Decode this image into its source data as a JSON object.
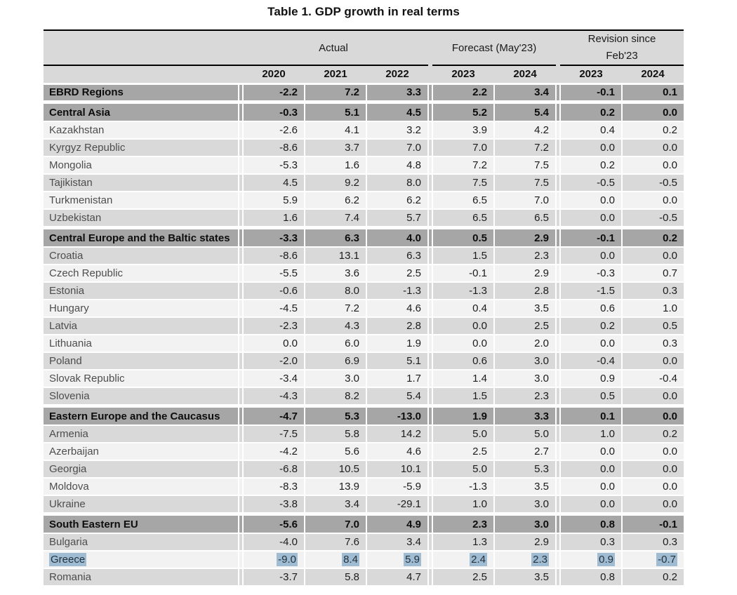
{
  "title": "Table 1. GDP growth in real terms",
  "colors": {
    "header_bg": "#d9d9d9",
    "section_bg": "#a6a6a6",
    "row_light": "#f2f2f2",
    "row_dark": "#d9d9d9",
    "selection": "#a0bcd2"
  },
  "chart_data": {
    "type": "table",
    "title": "Table 1. GDP growth in real terms",
    "column_groups": [
      {
        "label": "Actual",
        "span": 3
      },
      {
        "label": "Forecast (May'23)",
        "span": 2
      },
      {
        "label": "Revision since\nFeb'23",
        "span": 2
      }
    ],
    "columns": [
      "2020",
      "2021",
      "2022",
      "2023",
      "2024",
      "2023",
      "2024"
    ],
    "rows": [
      {
        "name": "EBRD Regions",
        "variant": "section",
        "gap_above": false,
        "selected": false,
        "values": [
          "-2.2",
          "7.2",
          "3.3",
          "2.2",
          "3.4",
          "-0.1",
          "0.1"
        ]
      },
      {
        "name": "Central Asia",
        "variant": "section",
        "gap_above": true,
        "selected": false,
        "values": [
          "-0.3",
          "5.1",
          "4.5",
          "5.2",
          "5.4",
          "0.2",
          "0.0"
        ]
      },
      {
        "name": "Kazakhstan",
        "variant": "light",
        "gap_above": false,
        "selected": false,
        "values": [
          "-2.6",
          "4.1",
          "3.2",
          "3.9",
          "4.2",
          "0.4",
          "0.2"
        ]
      },
      {
        "name": "Kyrgyz Republic",
        "variant": "dark",
        "gap_above": false,
        "selected": false,
        "values": [
          "-8.6",
          "3.7",
          "7.0",
          "7.0",
          "7.2",
          "0.0",
          "0.0"
        ]
      },
      {
        "name": "Mongolia",
        "variant": "light",
        "gap_above": false,
        "selected": false,
        "values": [
          "-5.3",
          "1.6",
          "4.8",
          "7.2",
          "7.5",
          "0.2",
          "0.0"
        ]
      },
      {
        "name": "Tajikistan",
        "variant": "dark",
        "gap_above": false,
        "selected": false,
        "values": [
          "4.5",
          "9.2",
          "8.0",
          "7.5",
          "7.5",
          "-0.5",
          "-0.5"
        ]
      },
      {
        "name": "Turkmenistan",
        "variant": "light",
        "gap_above": false,
        "selected": false,
        "values": [
          "5.9",
          "6.2",
          "6.2",
          "6.5",
          "7.0",
          "0.0",
          "0.0"
        ]
      },
      {
        "name": "Uzbekistan",
        "variant": "dark",
        "gap_above": false,
        "selected": false,
        "values": [
          "1.6",
          "7.4",
          "5.7",
          "6.5",
          "6.5",
          "0.0",
          "-0.5"
        ]
      },
      {
        "name": "Central Europe and the Baltic states",
        "variant": "section",
        "gap_above": true,
        "selected": false,
        "values": [
          "-3.3",
          "6.3",
          "4.0",
          "0.5",
          "2.9",
          "-0.1",
          "0.2"
        ]
      },
      {
        "name": "Croatia",
        "variant": "dark",
        "gap_above": false,
        "selected": false,
        "values": [
          "-8.6",
          "13.1",
          "6.3",
          "1.5",
          "2.3",
          "0.0",
          "0.0"
        ]
      },
      {
        "name": "Czech Republic",
        "variant": "light",
        "gap_above": false,
        "selected": false,
        "values": [
          "-5.5",
          "3.6",
          "2.5",
          "-0.1",
          "2.9",
          "-0.3",
          "0.7"
        ]
      },
      {
        "name": "Estonia",
        "variant": "dark",
        "gap_above": false,
        "selected": false,
        "values": [
          "-0.6",
          "8.0",
          "-1.3",
          "-1.3",
          "2.8",
          "-1.5",
          "0.3"
        ]
      },
      {
        "name": "Hungary",
        "variant": "light",
        "gap_above": false,
        "selected": false,
        "values": [
          "-4.5",
          "7.2",
          "4.6",
          "0.4",
          "3.5",
          "0.6",
          "1.0"
        ]
      },
      {
        "name": "Latvia",
        "variant": "dark",
        "gap_above": false,
        "selected": false,
        "values": [
          "-2.3",
          "4.3",
          "2.8",
          "0.0",
          "2.5",
          "0.2",
          "0.5"
        ]
      },
      {
        "name": "Lithuania",
        "variant": "light",
        "gap_above": false,
        "selected": false,
        "values": [
          "0.0",
          "6.0",
          "1.9",
          "0.0",
          "2.0",
          "0.0",
          "0.3"
        ]
      },
      {
        "name": "Poland",
        "variant": "dark",
        "gap_above": false,
        "selected": false,
        "values": [
          "-2.0",
          "6.9",
          "5.1",
          "0.6",
          "3.0",
          "-0.4",
          "0.0"
        ]
      },
      {
        "name": "Slovak Republic",
        "variant": "light",
        "gap_above": false,
        "selected": false,
        "values": [
          "-3.4",
          "3.0",
          "1.7",
          "1.4",
          "3.0",
          "0.9",
          "-0.4"
        ]
      },
      {
        "name": "Slovenia",
        "variant": "dark",
        "gap_above": false,
        "selected": false,
        "values": [
          "-4.3",
          "8.2",
          "5.4",
          "1.5",
          "2.3",
          "0.5",
          "0.0"
        ]
      },
      {
        "name": "Eastern Europe and the Caucasus",
        "variant": "section",
        "gap_above": true,
        "selected": false,
        "values": [
          "-4.7",
          "5.3",
          "-13.0",
          "1.9",
          "3.3",
          "0.1",
          "0.0"
        ]
      },
      {
        "name": "Armenia",
        "variant": "dark",
        "gap_above": false,
        "selected": false,
        "values": [
          "-7.5",
          "5.8",
          "14.2",
          "5.0",
          "5.0",
          "1.0",
          "0.2"
        ]
      },
      {
        "name": "Azerbaijan",
        "variant": "light",
        "gap_above": false,
        "selected": false,
        "values": [
          "-4.2",
          "5.6",
          "4.6",
          "2.5",
          "2.7",
          "0.0",
          "0.0"
        ]
      },
      {
        "name": "Georgia",
        "variant": "dark",
        "gap_above": false,
        "selected": false,
        "values": [
          "-6.8",
          "10.5",
          "10.1",
          "5.0",
          "5.3",
          "0.0",
          "0.0"
        ]
      },
      {
        "name": "Moldova",
        "variant": "light",
        "gap_above": false,
        "selected": false,
        "values": [
          "-8.3",
          "13.9",
          "-5.9",
          "-1.3",
          "3.5",
          "0.0",
          "0.0"
        ]
      },
      {
        "name": "Ukraine",
        "variant": "dark",
        "gap_above": false,
        "selected": false,
        "values": [
          "-3.8",
          "3.4",
          "-29.1",
          "1.0",
          "3.0",
          "0.0",
          "0.0"
        ]
      },
      {
        "name": "South Eastern EU",
        "variant": "section",
        "gap_above": true,
        "selected": false,
        "values": [
          "-5.6",
          "7.0",
          "4.9",
          "2.3",
          "3.0",
          "0.8",
          "-0.1"
        ]
      },
      {
        "name": "Bulgaria",
        "variant": "dark",
        "gap_above": false,
        "selected": false,
        "values": [
          "-4.0",
          "7.6",
          "3.4",
          "1.3",
          "2.9",
          "0.3",
          "0.3"
        ]
      },
      {
        "name": "Greece",
        "variant": "light",
        "gap_above": false,
        "selected": true,
        "values": [
          "-9.0",
          "8.4",
          "5.9",
          "2.4",
          "2.3",
          "0.9",
          "-0.7"
        ]
      },
      {
        "name": "Romania",
        "variant": "dark",
        "gap_above": false,
        "selected": false,
        "values": [
          "-3.7",
          "5.8",
          "4.7",
          "2.5",
          "3.5",
          "0.8",
          "0.2"
        ]
      }
    ]
  }
}
